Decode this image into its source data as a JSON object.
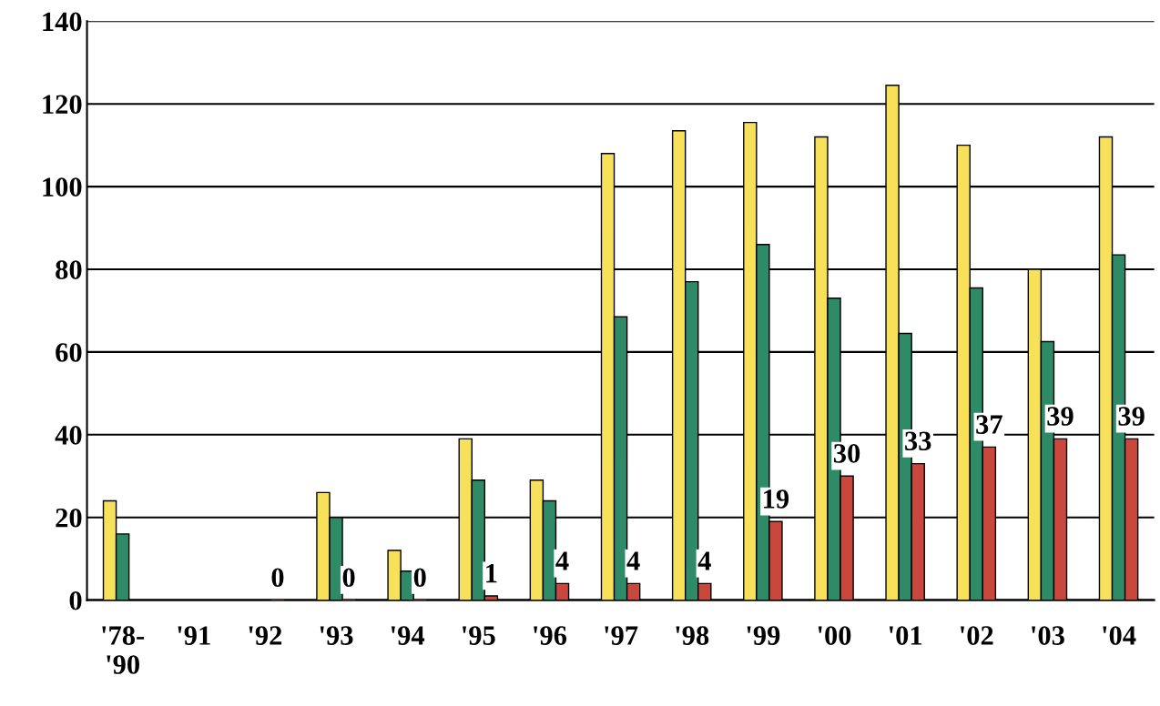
{
  "chart_data": {
    "type": "bar",
    "categories": [
      "'78-\n'90",
      "'91",
      "'92",
      "'93",
      "'94",
      "'95",
      "'96",
      "'97",
      "'98",
      "'99",
      "'00",
      "'01",
      "'02",
      "'03",
      "'04"
    ],
    "series": [
      {
        "color": "#f7e15a",
        "values": [
          24,
          null,
          null,
          26,
          12,
          39,
          29,
          108,
          113.5,
          115.5,
          112,
          124.5,
          110,
          80,
          112
        ]
      },
      {
        "color": "#2f8a68",
        "values": [
          16,
          null,
          null,
          20,
          7,
          29,
          24,
          68.5,
          77,
          86,
          73,
          64.5,
          75.5,
          62.5,
          83.5
        ]
      },
      {
        "color": "#c9483e",
        "values": [
          null,
          null,
          0,
          0,
          0,
          1,
          4,
          4,
          4,
          19,
          30,
          33,
          37,
          39,
          39
        ],
        "value_labels": [
          null,
          null,
          "0",
          "0",
          "0",
          "1",
          "4",
          "4",
          "4",
          "19",
          "30",
          "33",
          "37",
          "39",
          "39"
        ]
      }
    ],
    "ylim": [
      0,
      140
    ],
    "yticks": [
      0,
      20,
      40,
      60,
      80,
      100,
      120,
      140
    ],
    "grid": "y"
  }
}
